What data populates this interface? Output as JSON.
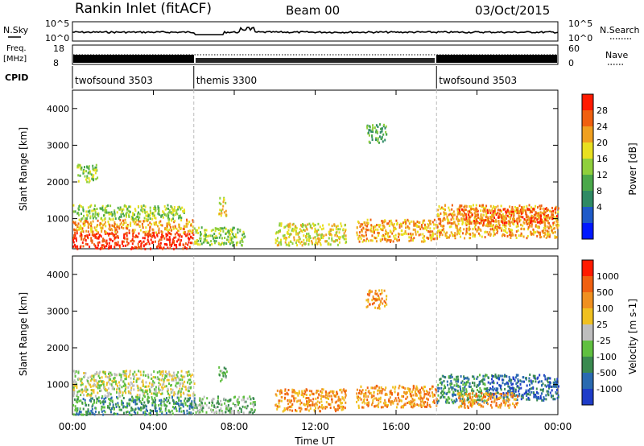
{
  "header": {
    "station": "Rankin Inlet (fitACF)",
    "beam": "Beam 00",
    "date": "03/Oct/2015"
  },
  "top_panels": {
    "nsky_label": "N.Sky",
    "nsky_ticks": [
      "10^5",
      "10^0"
    ],
    "nsearch_label": "N.Search",
    "nsearch_ticks": [
      "10^5",
      "10^0"
    ],
    "freq_label_1": "Freq.",
    "freq_label_2": "[MHz]",
    "freq_ticks": [
      "18",
      "8"
    ],
    "nave_label": "Nave",
    "nave_ticks": [
      "60",
      "0"
    ],
    "cpid_label": "CPID",
    "cpid_segments": [
      {
        "label": "twofsound 3503",
        "start_h": 0,
        "end_h": 6
      },
      {
        "label": "themis 3300",
        "start_h": 6,
        "end_h": 18
      },
      {
        "label": "twofsound 3503",
        "start_h": 18,
        "end_h": 24
      }
    ]
  },
  "x_axis": {
    "label": "Time UT",
    "ticks": [
      "00:00",
      "04:00",
      "08:00",
      "12:00",
      "16:00",
      "20:00",
      "00:00"
    ],
    "range_hours": [
      0,
      24
    ]
  },
  "chart_data": [
    {
      "type": "heatmap",
      "name": "power",
      "ylabel": "Slant Range [km]",
      "yticks": [
        "4000",
        "3000",
        "2000",
        "1000"
      ],
      "ylim": [
        180,
        4500
      ],
      "colorbar_label": "Power [dB]",
      "colorbar_ticks": [
        "28",
        "24",
        "20",
        "16",
        "12",
        "8",
        "4"
      ],
      "colorscale": [
        "#0018ff",
        "#1e5ac8",
        "#2e8a64",
        "#4aa84a",
        "#8fcf3c",
        "#e8e020",
        "#f0a020",
        "#f06010",
        "#ff1a00"
      ],
      "regions": [
        {
          "t": [
            0.0,
            6.0
          ],
          "r": [
            200,
            650
          ],
          "level": 8
        },
        {
          "t": [
            0.0,
            6.0
          ],
          "r": [
            650,
            1000
          ],
          "level": 6
        },
        {
          "t": [
            0.0,
            5.5
          ],
          "r": [
            1000,
            1400
          ],
          "level": 4
        },
        {
          "t": [
            0.2,
            1.2
          ],
          "r": [
            2000,
            2500
          ],
          "level": 4
        },
        {
          "t": [
            6.0,
            8.5
          ],
          "r": [
            300,
            800
          ],
          "level": 4
        },
        {
          "t": [
            7.2,
            7.6
          ],
          "r": [
            1100,
            1600
          ],
          "level": 5
        },
        {
          "t": [
            10.0,
            13.5
          ],
          "r": [
            300,
            900
          ],
          "level": 5
        },
        {
          "t": [
            14.0,
            18.0
          ],
          "r": [
            400,
            1000
          ],
          "level": 6
        },
        {
          "t": [
            14.5,
            15.5
          ],
          "r": [
            3100,
            3600
          ],
          "level": 3
        },
        {
          "t": [
            18.0,
            24.0
          ],
          "r": [
            500,
            1400
          ],
          "level": 6
        },
        {
          "t": [
            19.0,
            24.0
          ],
          "r": [
            900,
            1300
          ],
          "level": 7
        }
      ]
    },
    {
      "type": "heatmap",
      "name": "velocity",
      "ylabel": "Slant Range [km]",
      "yticks": [
        "4000",
        "3000",
        "2000",
        "1000"
      ],
      "ylim": [
        180,
        4500
      ],
      "colorbar_label": "Velocity [m s-1]",
      "colorbar_ticks": [
        "1000",
        "500",
        "100",
        "25",
        "-25",
        "-100",
        "-500",
        "-1000"
      ],
      "colorscale": [
        "#1e3cc8",
        "#2a6ab0",
        "#3a8a50",
        "#60c040",
        "#bebebe",
        "#f0c020",
        "#f09020",
        "#f06010",
        "#ff1a00"
      ],
      "regions": [
        {
          "t": [
            0.0,
            6.0
          ],
          "r": [
            200,
            700
          ],
          "level": 2
        },
        {
          "t": [
            0.0,
            6.0
          ],
          "r": [
            700,
            1400
          ],
          "level": 4
        },
        {
          "t": [
            6.0,
            9.0
          ],
          "r": [
            250,
            700
          ],
          "level": 3
        },
        {
          "t": [
            7.2,
            7.6
          ],
          "r": [
            1100,
            1500
          ],
          "level": 3
        },
        {
          "t": [
            10.0,
            13.5
          ],
          "r": [
            300,
            900
          ],
          "level": 6
        },
        {
          "t": [
            14.0,
            18.0
          ],
          "r": [
            400,
            1000
          ],
          "level": 6
        },
        {
          "t": [
            14.5,
            15.5
          ],
          "r": [
            3100,
            3600
          ],
          "level": 6
        },
        {
          "t": [
            18.0,
            20.5
          ],
          "r": [
            500,
            1300
          ],
          "level": 2
        },
        {
          "t": [
            20.5,
            24.0
          ],
          "r": [
            600,
            1300
          ],
          "level": 1
        },
        {
          "t": [
            19.0,
            22.0
          ],
          "r": [
            400,
            800
          ],
          "level": 6
        }
      ]
    }
  ]
}
